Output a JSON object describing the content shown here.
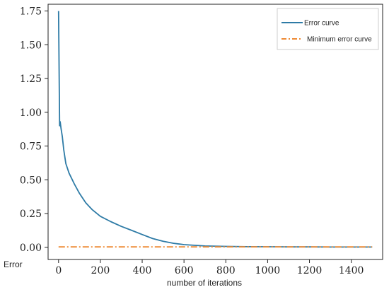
{
  "chart_data": {
    "type": "line",
    "xlabel": "number of iterations",
    "ylabel": "Error",
    "xlim": [
      -50,
      1550
    ],
    "ylim": [
      -0.09,
      1.8
    ],
    "xticks": [
      0,
      200,
      400,
      600,
      800,
      1000,
      1200,
      1400
    ],
    "xtick_labels": [
      "0",
      "200",
      "400",
      "600",
      "800",
      "1000",
      "1200",
      "1400"
    ],
    "yticks": [
      0.0,
      0.25,
      0.5,
      0.75,
      1.0,
      1.25,
      1.5,
      1.75
    ],
    "ytick_labels": [
      "0.00",
      "0.25",
      "0.50",
      "0.75",
      "1.00",
      "1.25",
      "1.50",
      "1.75"
    ],
    "grid": false,
    "legend_position": "top-right",
    "series": [
      {
        "name": "Error curve",
        "color": "#2e7ba6",
        "style": "solid",
        "x": [
          0,
          5,
          8,
          12,
          18,
          25,
          35,
          50,
          75,
          100,
          130,
          160,
          200,
          250,
          300,
          350,
          400,
          450,
          500,
          550,
          600,
          700,
          800,
          900,
          1000,
          1100,
          1200,
          1300,
          1400,
          1500
        ],
        "y": [
          1.75,
          0.9,
          0.93,
          0.88,
          0.82,
          0.72,
          0.62,
          0.55,
          0.47,
          0.4,
          0.33,
          0.28,
          0.23,
          0.19,
          0.155,
          0.125,
          0.095,
          0.065,
          0.045,
          0.03,
          0.02,
          0.01,
          0.007,
          0.005,
          0.004,
          0.003,
          0.003,
          0.002,
          0.002,
          0.002
        ]
      },
      {
        "name": "Minimum error curve",
        "color": "#ee8a34",
        "style": "dashdot",
        "x": [
          0,
          1500
        ],
        "y": [
          0.003,
          0.003
        ]
      }
    ]
  }
}
